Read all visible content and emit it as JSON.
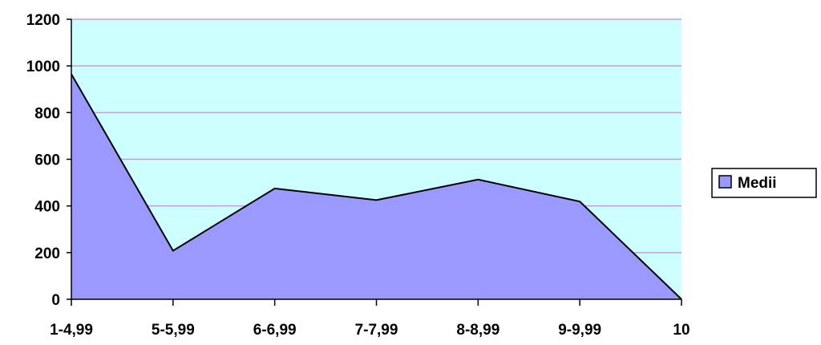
{
  "chart_data": {
    "type": "area",
    "categories": [
      "1-4,99",
      "5-5,99",
      "6-6,99",
      "7-7,99",
      "8-8,99",
      "9-9,99",
      "10"
    ],
    "series": [
      {
        "name": "Medii",
        "values": [
          965,
          208,
          475,
          425,
          513,
          419,
          0
        ]
      }
    ],
    "ylim": [
      0,
      1200
    ],
    "yticks": [
      0,
      200,
      400,
      600,
      800,
      1000,
      1200
    ],
    "grid": true,
    "legend_position": "right",
    "colors": {
      "plot_background": "#ccffff",
      "area_fill": "#9999ff",
      "area_stroke": "#000000",
      "gridline": "#c0a0d8"
    }
  }
}
